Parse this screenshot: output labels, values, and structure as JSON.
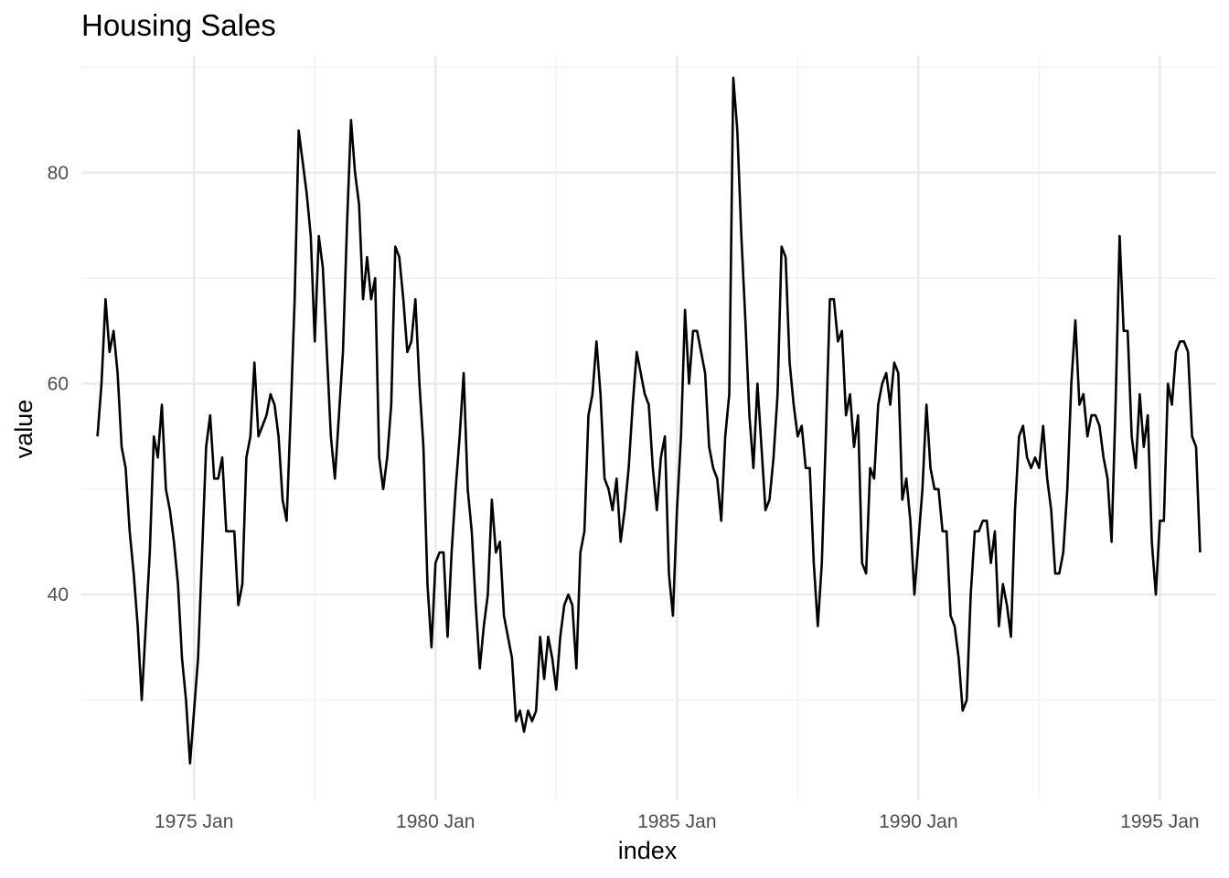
{
  "chart_data": {
    "type": "line",
    "title": "Housing Sales",
    "xlabel": "index",
    "ylabel": "value",
    "x_start": "1973 Jan",
    "x_end": "1995 Nov",
    "frequency": "monthly",
    "xlim": [
      "1972 Sep",
      "1996 Mar"
    ],
    "ylim": [
      20.5,
      91
    ],
    "x_ticks": [
      "1975 Jan",
      "1980 Jan",
      "1985 Jan",
      "1990 Jan",
      "1995 Jan"
    ],
    "y_ticks": [
      40,
      60,
      80
    ],
    "grid": true,
    "legend": "none",
    "line_color": "#000000",
    "series": [
      {
        "values": [
          55,
          60,
          68,
          63,
          65,
          61,
          54,
          52,
          46,
          42,
          37,
          30,
          37,
          44,
          55,
          53,
          58,
          50,
          48,
          45,
          41,
          34,
          30,
          24,
          29,
          34,
          44,
          54,
          57,
          51,
          51,
          53,
          46,
          46,
          46,
          39,
          41,
          53,
          55,
          62,
          55,
          56,
          57,
          59,
          58,
          55,
          49,
          47,
          57,
          68,
          84,
          81,
          78,
          74,
          64,
          74,
          71,
          63,
          55,
          51,
          57,
          63,
          75,
          85,
          80,
          77,
          68,
          72,
          68,
          70,
          53,
          50,
          53,
          58,
          73,
          72,
          68,
          63,
          64,
          68,
          60,
          54,
          41,
          35,
          43,
          44,
          44,
          36,
          44,
          50,
          55,
          61,
          50,
          46,
          39,
          33,
          37,
          40,
          49,
          44,
          45,
          38,
          36,
          34,
          28,
          29,
          27,
          29,
          28,
          29,
          36,
          32,
          36,
          34,
          31,
          36,
          39,
          40,
          39,
          33,
          44,
          46,
          57,
          59,
          64,
          59,
          51,
          50,
          48,
          51,
          45,
          48,
          52,
          58,
          63,
          61,
          59,
          58,
          52,
          48,
          53,
          55,
          42,
          38,
          48,
          55,
          67,
          60,
          65,
          65,
          63,
          61,
          54,
          52,
          51,
          47,
          55,
          59,
          89,
          84,
          74,
          66,
          57,
          52,
          60,
          54,
          48,
          49,
          53,
          59,
          73,
          72,
          62,
          58,
          55,
          56,
          52,
          52,
          43,
          37,
          43,
          55,
          68,
          68,
          64,
          65,
          57,
          59,
          54,
          57,
          43,
          42,
          52,
          51,
          58,
          60,
          61,
          58,
          62,
          61,
          49,
          51,
          47,
          40,
          45,
          50,
          58,
          52,
          50,
          50,
          46,
          46,
          38,
          37,
          34,
          29,
          30,
          40,
          46,
          46,
          47,
          47,
          43,
          46,
          37,
          41,
          39,
          36,
          48,
          55,
          56,
          53,
          52,
          53,
          52,
          56,
          51,
          48,
          42,
          42,
          44,
          50,
          60,
          66,
          58,
          59,
          55,
          57,
          57,
          56,
          53,
          51,
          45,
          58,
          74,
          65,
          65,
          55,
          52,
          59,
          54,
          57,
          45,
          40,
          47,
          47,
          60,
          58,
          63,
          64,
          64,
          63,
          55,
          54,
          44
        ]
      }
    ]
  }
}
